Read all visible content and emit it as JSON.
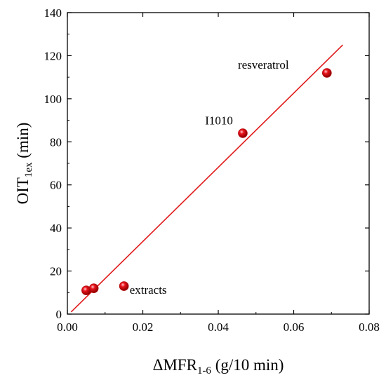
{
  "chart_data": {
    "type": "scatter",
    "title": "",
    "xlabel": {
      "main": "ΔMFR",
      "sub": "1-6",
      "unit": " (g/10 min)"
    },
    "ylabel": {
      "main": "OIT",
      "sub": "1ex",
      "unit": " (min)"
    },
    "xlim": [
      0,
      0.08
    ],
    "ylim": [
      0,
      140
    ],
    "xticks": [
      0,
      0.02,
      0.04,
      0.06,
      0.08
    ],
    "xtick_labels": [
      "0.00",
      "0.02",
      "0.04",
      "0.06",
      "0.08"
    ],
    "yticks": [
      0,
      20,
      40,
      60,
      80,
      100,
      120,
      140
    ],
    "ytick_labels": [
      "0",
      "20",
      "40",
      "60",
      "80",
      "100",
      "120",
      "140"
    ],
    "grid": false,
    "points": [
      {
        "x": 0.005,
        "y": 11
      },
      {
        "x": 0.007,
        "y": 12
      },
      {
        "x": 0.015,
        "y": 13
      },
      {
        "x": 0.0465,
        "y": 84
      },
      {
        "x": 0.0688,
        "y": 112
      }
    ],
    "fit_line": {
      "x": [
        0.001,
        0.073
      ],
      "y": [
        1,
        125
      ]
    },
    "annotations": [
      {
        "text": "extracts",
        "x": 0.0165,
        "y": 9.5
      },
      {
        "text": "I1010",
        "x": 0.0365,
        "y": 88
      },
      {
        "text": "resveratrol",
        "x": 0.0452,
        "y": 114
      }
    ],
    "colors": {
      "marker": "#e8141c",
      "line": "#e01a1a",
      "axis": "#000000"
    }
  }
}
